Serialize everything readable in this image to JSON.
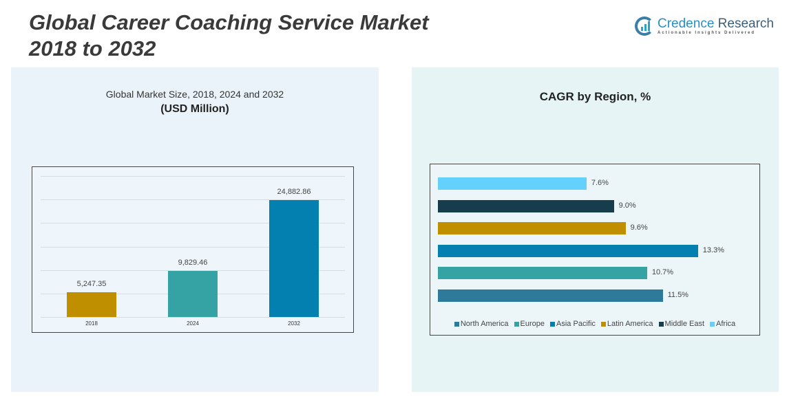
{
  "title_line1": "Global Career Coaching Service Market",
  "title_line2": "2018 to 2032",
  "logo": {
    "name1": "Credence",
    "name2": " Research",
    "tagline": "Actionable Insights Delivered"
  },
  "chart_data": [
    {
      "type": "bar",
      "title": "Global Market Size, 2018, 2024 and 2032",
      "subtitle": "(USD Million)",
      "categories": [
        "2018",
        "2024",
        "2032"
      ],
      "values": [
        5247.35,
        9829.46,
        24882.86
      ],
      "labels": [
        "5,247.35",
        "9,829.46",
        "24,882.86"
      ],
      "colors": [
        "#bf8f00",
        "#35a3a3",
        "#0380b0"
      ],
      "ylim": [
        0,
        30000
      ],
      "grid_step": 5000,
      "grid": true
    },
    {
      "type": "bar",
      "orientation": "horizontal",
      "title": "CAGR by Region, %",
      "categories": [
        "Africa",
        "Middle East",
        "Latin America",
        "Asia Pacific",
        "Europe",
        "North America"
      ],
      "values": [
        7.6,
        9.0,
        9.6,
        13.3,
        10.7,
        11.5
      ],
      "labels": [
        "7.6%",
        "9.0%",
        "9.6%",
        "13.3%",
        "10.7%",
        "11.5%"
      ],
      "colors": [
        "#63d1fb",
        "#173d4d",
        "#bf8f00",
        "#0380b0",
        "#35a3a3",
        "#2e7a9a"
      ],
      "legend": [
        {
          "name": "North America",
          "color": "#2e7a9a"
        },
        {
          "name": "Europe",
          "color": "#35a3a3"
        },
        {
          "name": "Asia Pacific",
          "color": "#0380b0"
        },
        {
          "name": "Latin America",
          "color": "#bf8f00"
        },
        {
          "name": "Middle East",
          "color": "#173d4d"
        },
        {
          "name": "Africa",
          "color": "#63d1fb"
        }
      ],
      "legend_position": "bottom",
      "xlim": [
        0,
        14
      ]
    }
  ]
}
